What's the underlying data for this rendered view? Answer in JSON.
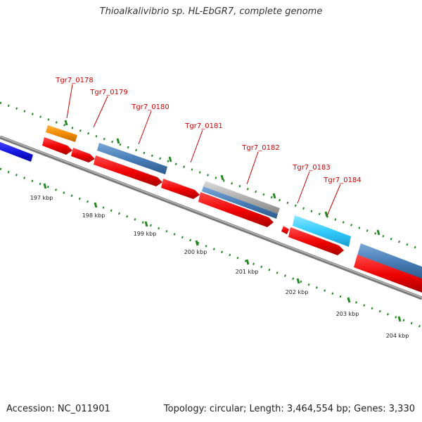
{
  "title": "Thioalkalivibrio sp. HL-EbGR7, complete genome",
  "accession": "Accession: NC_011901",
  "stats": "Topology: circular; Length: 3,464,554 bp; Genes: 3,330",
  "colors": {
    "backbone": "#8c8c8c",
    "cds": "#ee0000",
    "gene_label": "#cc0000",
    "gc_dots": "#228822",
    "hit_blue": "#4a7fb8",
    "hit_bright_blue": "#1a1ae6",
    "hit_orange": "#f28c00",
    "hit_cyan": "#33ccff",
    "hit_gray": "#b0b0b0"
  },
  "tick_labels": [
    "197 kbp",
    "198 kbp",
    "199 kbp",
    "200 kbp",
    "201 kbp",
    "202 kbp",
    "203 kbp",
    "204 kbp"
  ],
  "gene_labels": [
    "Tgr7_0178",
    "Tgr7_0179",
    "Tgr7_0180",
    "Tgr7_0181",
    "Tgr7_0182",
    "Tgr7_0183",
    "Tgr7_0184"
  ]
}
